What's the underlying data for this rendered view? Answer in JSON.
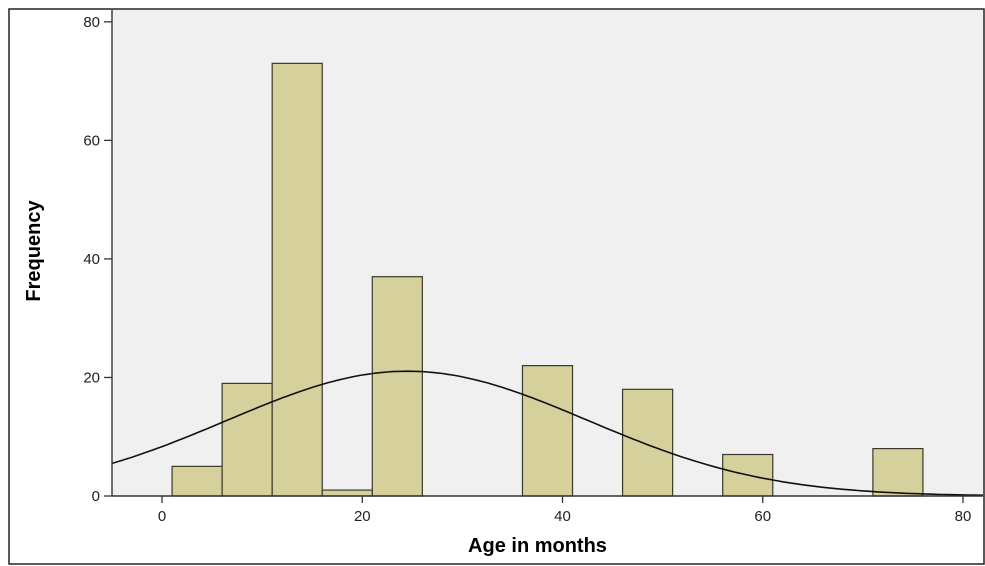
{
  "chart_data": {
    "type": "bar",
    "subtype": "histogram-with-normal-curve",
    "title": "",
    "xlabel": "Age in months",
    "ylabel": "Frequency",
    "xlim": [
      -5,
      82
    ],
    "ylim": [
      0,
      82
    ],
    "x_ticks": [
      0,
      20,
      40,
      60,
      80
    ],
    "y_ticks": [
      0,
      20,
      40,
      60,
      80
    ],
    "bin_width": 5,
    "bins": [
      {
        "start": 1,
        "end": 6,
        "value": 5
      },
      {
        "start": 6,
        "end": 11,
        "value": 19
      },
      {
        "start": 11,
        "end": 16,
        "value": 73
      },
      {
        "start": 16,
        "end": 21,
        "value": 1
      },
      {
        "start": 21,
        "end": 26,
        "value": 37
      },
      {
        "start": 36,
        "end": 41,
        "value": 22
      },
      {
        "start": 46,
        "end": 51,
        "value": 18
      },
      {
        "start": 56,
        "end": 61,
        "value": 7
      },
      {
        "start": 71,
        "end": 76,
        "value": 8
      }
    ],
    "normal_curve": {
      "mean": 24.5,
      "sd": 18,
      "n": 190
    },
    "grid": false,
    "legend": "none",
    "colors": {
      "bar_fill": "#d6d09c",
      "bar_stroke": "#3a3a2a",
      "plot_background": "#f0f0f0",
      "curve": "#111111",
      "axis": "#333333"
    }
  }
}
